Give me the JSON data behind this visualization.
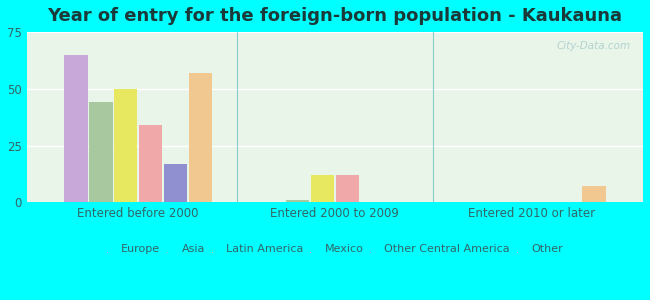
{
  "title": "Year of entry for the foreign-born population - Kaukauna",
  "groups": [
    "Entered before 2000",
    "Entered 2000 to 2009",
    "Entered 2010 or later"
  ],
  "series": [
    "Europe",
    "Asia",
    "Latin America",
    "Mexico",
    "Other Central America",
    "Other"
  ],
  "colors": [
    "#c8a8d8",
    "#a8c8a0",
    "#e8e860",
    "#f0a8a8",
    "#9090d0",
    "#f0c890"
  ],
  "values": [
    [
      65,
      44,
      50,
      34,
      17,
      57
    ],
    [
      0,
      1,
      12,
      12,
      0,
      0
    ],
    [
      0,
      0,
      0,
      0,
      0,
      7
    ]
  ],
  "ylim": [
    0,
    75
  ],
  "yticks": [
    0,
    25,
    50,
    75
  ],
  "background_color": "#00ffff",
  "plot_bg_top": "#e8f5e8",
  "plot_bg_bottom": "#f0fff0",
  "watermark": "City-Data.com",
  "title_fontsize": 13,
  "tick_fontsize": 8.5,
  "legend_fontsize": 8,
  "title_color": "#1a3a3a",
  "tick_color": "#336666"
}
